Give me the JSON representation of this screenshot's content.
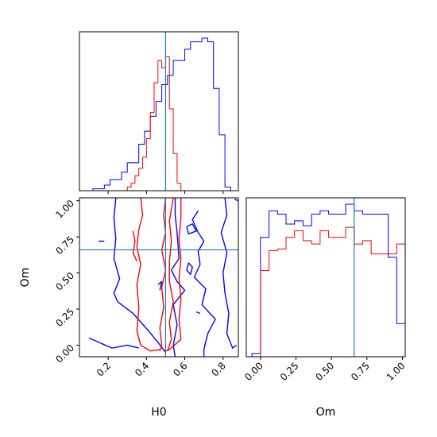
{
  "colors": {
    "series_a": "#0000ff",
    "series_b": "#ff0000",
    "truth": "#1f77b4",
    "frame": "#000000"
  },
  "chart_data": [
    {
      "type": "histogram",
      "panel": "H0 marginal (top-left)",
      "xlim": [
        0.05,
        0.88
      ],
      "truth": 0.5,
      "show_y_ticks": false,
      "series": [
        {
          "color": "blue",
          "bin_edges": [
            0.09,
            0.12,
            0.15,
            0.18,
            0.21,
            0.24,
            0.27,
            0.3,
            0.33,
            0.36,
            0.39,
            0.42,
            0.45,
            0.48,
            0.51,
            0.54,
            0.57,
            0.6,
            0.63,
            0.66,
            0.69,
            0.72,
            0.75,
            0.78,
            0.81,
            0.84,
            0.87
          ],
          "counts": [
            0,
            0.01,
            0.01,
            0.03,
            0.06,
            0.06,
            0.1,
            0.15,
            0.15,
            0.25,
            0.32,
            0.4,
            0.48,
            0.57,
            0.62,
            0.7,
            0.7,
            0.76,
            0.8,
            0.8,
            0.82,
            0.8,
            0.55,
            0.3,
            0.02,
            0
          ]
        },
        {
          "color": "red",
          "bin_edges": [
            0.3,
            0.32,
            0.34,
            0.36,
            0.38,
            0.4,
            0.42,
            0.44,
            0.46,
            0.48,
            0.5,
            0.52,
            0.54,
            0.56,
            0.58,
            0.6
          ],
          "counts": [
            0.02,
            0.04,
            0.08,
            0.12,
            0.18,
            0.28,
            0.42,
            0.58,
            0.7,
            0.66,
            0.72,
            0.44,
            0.2,
            0.04,
            0
          ]
        }
      ]
    },
    {
      "type": "contour",
      "panel": "H0 vs Om (bottom-left)",
      "xlabel": "H0",
      "ylabel": "Om",
      "xlim": [
        0.05,
        0.88
      ],
      "ylim": [
        -0.08,
        1.02
      ],
      "xticks": [
        0.2,
        0.4,
        0.6,
        0.8
      ],
      "yticks": [
        0.0,
        0.25,
        0.5,
        0.75,
        1.0
      ],
      "xtick_labels": [
        "0.2",
        "0.4",
        "0.6",
        "0.8"
      ],
      "ytick_labels": [
        "0.00",
        "0.25",
        "0.50",
        "0.75",
        "1.00"
      ],
      "truth": {
        "x": 0.5,
        "y": 0.66
      },
      "contours": [
        {
          "color": "blue",
          "points": [
            [
              0.24,
              1.02
            ],
            [
              0.23,
              0.88
            ],
            [
              0.24,
              0.74
            ],
            [
              0.23,
              0.6
            ],
            [
              0.26,
              0.46
            ],
            [
              0.23,
              0.36
            ],
            [
              0.25,
              0.3
            ],
            [
              0.33,
              0.22
            ],
            [
              0.41,
              0.1
            ],
            [
              0.46,
              0.02
            ],
            [
              0.5,
              -0.05
            ]
          ]
        },
        {
          "color": "blue",
          "points": [
            [
              0.1,
              0.05
            ],
            [
              0.22,
              -0.02
            ],
            [
              0.3,
              0.0
            ],
            [
              0.36,
              -0.02
            ]
          ]
        },
        {
          "color": "blue",
          "points": [
            [
              0.18,
              0.72
            ],
            [
              0.15,
              0.72
            ]
          ]
        },
        {
          "color": "blue",
          "points": [
            [
              0.55,
              1.02
            ],
            [
              0.55,
              0.9
            ],
            [
              0.56,
              0.78
            ],
            [
              0.57,
              0.6
            ],
            [
              0.53,
              0.52
            ],
            [
              0.56,
              0.44
            ],
            [
              0.6,
              0.38
            ],
            [
              0.54,
              0.28
            ],
            [
              0.56,
              0.14
            ],
            [
              0.54,
              0.0
            ],
            [
              0.55,
              -0.08
            ]
          ]
        },
        {
          "color": "blue",
          "points": [
            [
              0.67,
              0.93
            ],
            [
              0.64,
              0.87
            ],
            [
              0.67,
              0.78
            ],
            [
              0.7,
              0.72
            ],
            [
              0.67,
              0.65
            ],
            [
              0.68,
              0.56
            ],
            [
              0.65,
              0.47
            ],
            [
              0.71,
              0.39
            ],
            [
              0.69,
              0.28
            ],
            [
              0.76,
              0.18
            ],
            [
              0.72,
              0.08
            ],
            [
              0.7,
              -0.03
            ],
            [
              0.7,
              -0.08
            ]
          ]
        },
        {
          "color": "blue",
          "points": [
            [
              0.81,
              1.02
            ],
            [
              0.82,
              0.9
            ],
            [
              0.79,
              0.78
            ],
            [
              0.82,
              0.64
            ],
            [
              0.8,
              0.5
            ],
            [
              0.81,
              0.36
            ],
            [
              0.83,
              0.22
            ],
            [
              0.82,
              0.08
            ],
            [
              0.85,
              -0.02
            ],
            [
              0.87,
              0.0
            ]
          ]
        },
        {
          "color": "blue",
          "points": [
            [
              0.86,
              1.01
            ],
            [
              0.88,
              1.0
            ]
          ]
        },
        {
          "color": "blue",
          "points": [
            [
              0.61,
              0.82
            ],
            [
              0.64,
              0.84
            ],
            [
              0.66,
              0.79
            ],
            [
              0.62,
              0.77
            ],
            [
              0.61,
              0.82
            ]
          ]
        },
        {
          "color": "blue",
          "points": [
            [
              0.62,
              0.57
            ],
            [
              0.64,
              0.54
            ],
            [
              0.63,
              0.49
            ],
            [
              0.61,
              0.52
            ],
            [
              0.62,
              0.57
            ]
          ]
        },
        {
          "color": "blue",
          "points": [
            [
              0.66,
              0.23
            ],
            [
              0.68,
              0.22
            ]
          ]
        },
        {
          "color": "blue",
          "points": [
            [
              0.46,
              0.42
            ],
            [
              0.48,
              0.44
            ],
            [
              0.47,
              0.38
            ]
          ]
        },
        {
          "color": "red",
          "points": [
            [
              0.37,
              1.02
            ],
            [
              0.38,
              0.9
            ],
            [
              0.36,
              0.8
            ],
            [
              0.35,
              0.68
            ],
            [
              0.37,
              0.56
            ],
            [
              0.35,
              0.42
            ],
            [
              0.36,
              0.26
            ],
            [
              0.35,
              0.1
            ],
            [
              0.37,
              0.0
            ],
            [
              0.42,
              -0.04
            ],
            [
              0.47,
              -0.03
            ]
          ]
        },
        {
          "color": "red",
          "points": [
            [
              0.33,
              0.79
            ],
            [
              0.34,
              0.72
            ],
            [
              0.33,
              0.64
            ],
            [
              0.35,
              0.58
            ]
          ]
        },
        {
          "color": "red",
          "points": [
            [
              0.5,
              1.02
            ],
            [
              0.49,
              0.9
            ],
            [
              0.5,
              0.78
            ],
            [
              0.48,
              0.66
            ],
            [
              0.5,
              0.52
            ],
            [
              0.48,
              0.4
            ],
            [
              0.49,
              0.26
            ],
            [
              0.47,
              0.12
            ],
            [
              0.48,
              0.0
            ],
            [
              0.47,
              -0.04
            ]
          ]
        },
        {
          "color": "red",
          "points": [
            [
              0.54,
              1.02
            ],
            [
              0.52,
              0.86
            ],
            [
              0.53,
              0.72
            ],
            [
              0.52,
              0.58
            ],
            [
              0.52,
              0.44
            ],
            [
              0.54,
              0.3
            ],
            [
              0.52,
              0.16
            ],
            [
              0.53,
              0.04
            ],
            [
              0.51,
              -0.04
            ]
          ]
        },
        {
          "color": "red",
          "points": [
            [
              0.58,
              1.02
            ],
            [
              0.58,
              0.88
            ],
            [
              0.57,
              0.74
            ],
            [
              0.58,
              0.6
            ],
            [
              0.57,
              0.46
            ],
            [
              0.58,
              0.32
            ],
            [
              0.57,
              0.18
            ],
            [
              0.58,
              0.04
            ],
            [
              0.52,
              -0.03
            ],
            [
              0.5,
              -0.04
            ]
          ]
        }
      ]
    },
    {
      "type": "histogram",
      "panel": "Om marginal (bottom-right)",
      "xlabel": "Om",
      "xlim": [
        -0.1,
        1.02
      ],
      "xticks": [
        0.0,
        0.25,
        0.5,
        0.75,
        1.0
      ],
      "xtick_labels": [
        "0.00",
        "0.25",
        "0.50",
        "0.75",
        "1.00"
      ],
      "truth": 0.66,
      "show_y_ticks": false,
      "series": [
        {
          "color": "blue",
          "bin_edges": [
            -0.06,
            0.0,
            0.06,
            0.12,
            0.18,
            0.24,
            0.3,
            0.36,
            0.42,
            0.48,
            0.54,
            0.6,
            0.66,
            0.72,
            0.78,
            0.84,
            0.9,
            0.96,
            1.02
          ],
          "counts": [
            0.02,
            0.72,
            0.88,
            0.86,
            0.8,
            0.82,
            0.79,
            0.86,
            0.88,
            0.86,
            0.86,
            0.92,
            0.88,
            0.86,
            0.86,
            0.86,
            0.6,
            0.2
          ]
        },
        {
          "color": "red",
          "bin_edges": [
            0.0,
            0.06,
            0.12,
            0.18,
            0.24,
            0.3,
            0.36,
            0.42,
            0.48,
            0.54,
            0.6,
            0.66,
            0.72,
            0.78,
            0.84,
            0.9,
            0.96,
            1.02
          ],
          "counts": [
            0.52,
            0.64,
            0.65,
            0.72,
            0.76,
            0.7,
            0.68,
            0.76,
            0.72,
            0.72,
            0.78,
            0.68,
            0.7,
            0.62,
            0.62,
            0.62,
            0.68
          ]
        }
      ]
    }
  ]
}
